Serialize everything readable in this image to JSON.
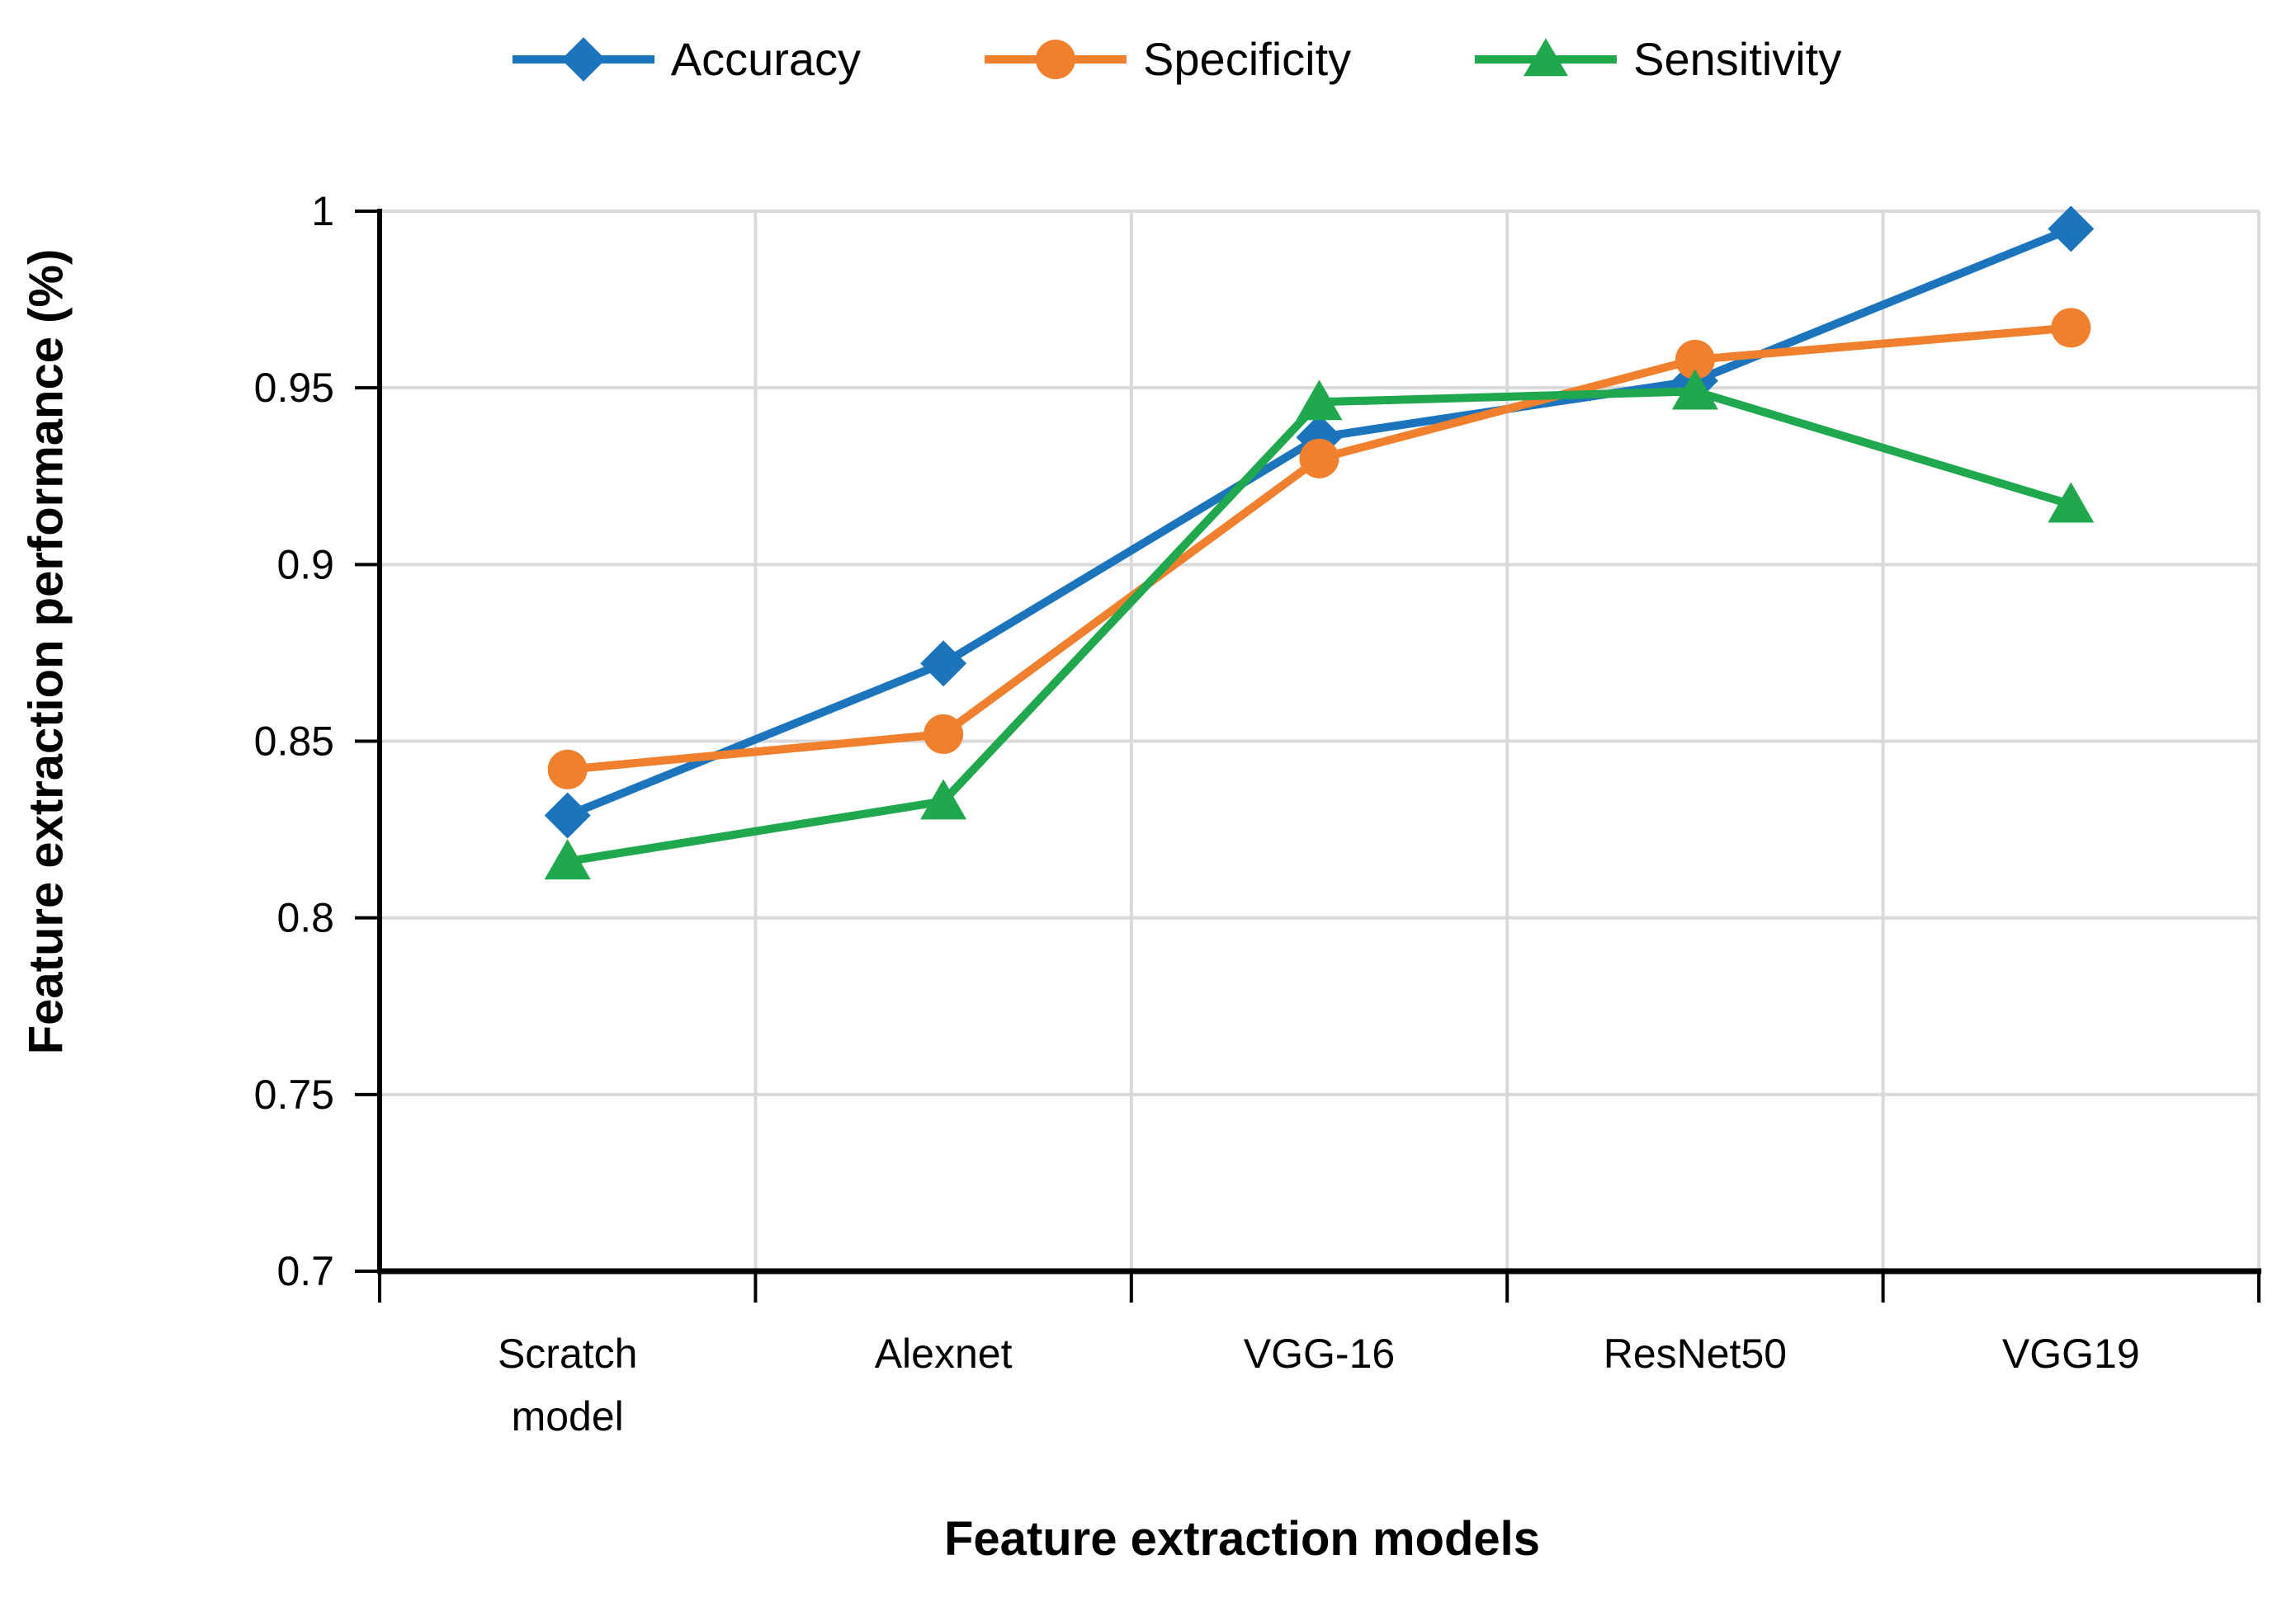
{
  "chart_data": {
    "type": "line",
    "title": "",
    "categories": [
      "Scratch model",
      "Alexnet",
      "VGG-16",
      "ResNet50",
      "VGG19"
    ],
    "series": [
      {
        "name": "Accuracy",
        "marker": "diamond",
        "color": "#1C75BC",
        "values": [
          0.829,
          0.872,
          0.936,
          0.952,
          0.995
        ]
      },
      {
        "name": "Specificity",
        "marker": "circle",
        "color": "#F0802D",
        "values": [
          0.842,
          0.852,
          0.93,
          0.958,
          0.967
        ]
      },
      {
        "name": "Sensitivity",
        "marker": "triangle",
        "color": "#20A84E",
        "values": [
          0.816,
          0.833,
          0.946,
          0.949,
          0.917
        ]
      }
    ],
    "xlabel": "Feature extraction models",
    "ylabel": "Feature extraction performance (%)",
    "ylim": [
      0.7,
      1.0
    ],
    "yticks": [
      {
        "label": "1",
        "value": 1.0
      },
      {
        "label": "0.95",
        "value": 0.95
      },
      {
        "label": "0.9",
        "value": 0.9
      },
      {
        "label": "0.85",
        "value": 0.85
      },
      {
        "label": "0.8",
        "value": 0.8
      },
      {
        "label": "0.75",
        "value": 0.75
      },
      {
        "label": "0.7",
        "value": 0.7
      }
    ],
    "grid": true,
    "legend_position": "top",
    "grid_color": "#D9D9D9",
    "axis_color": "#000000",
    "background": "#FFFFFF"
  }
}
